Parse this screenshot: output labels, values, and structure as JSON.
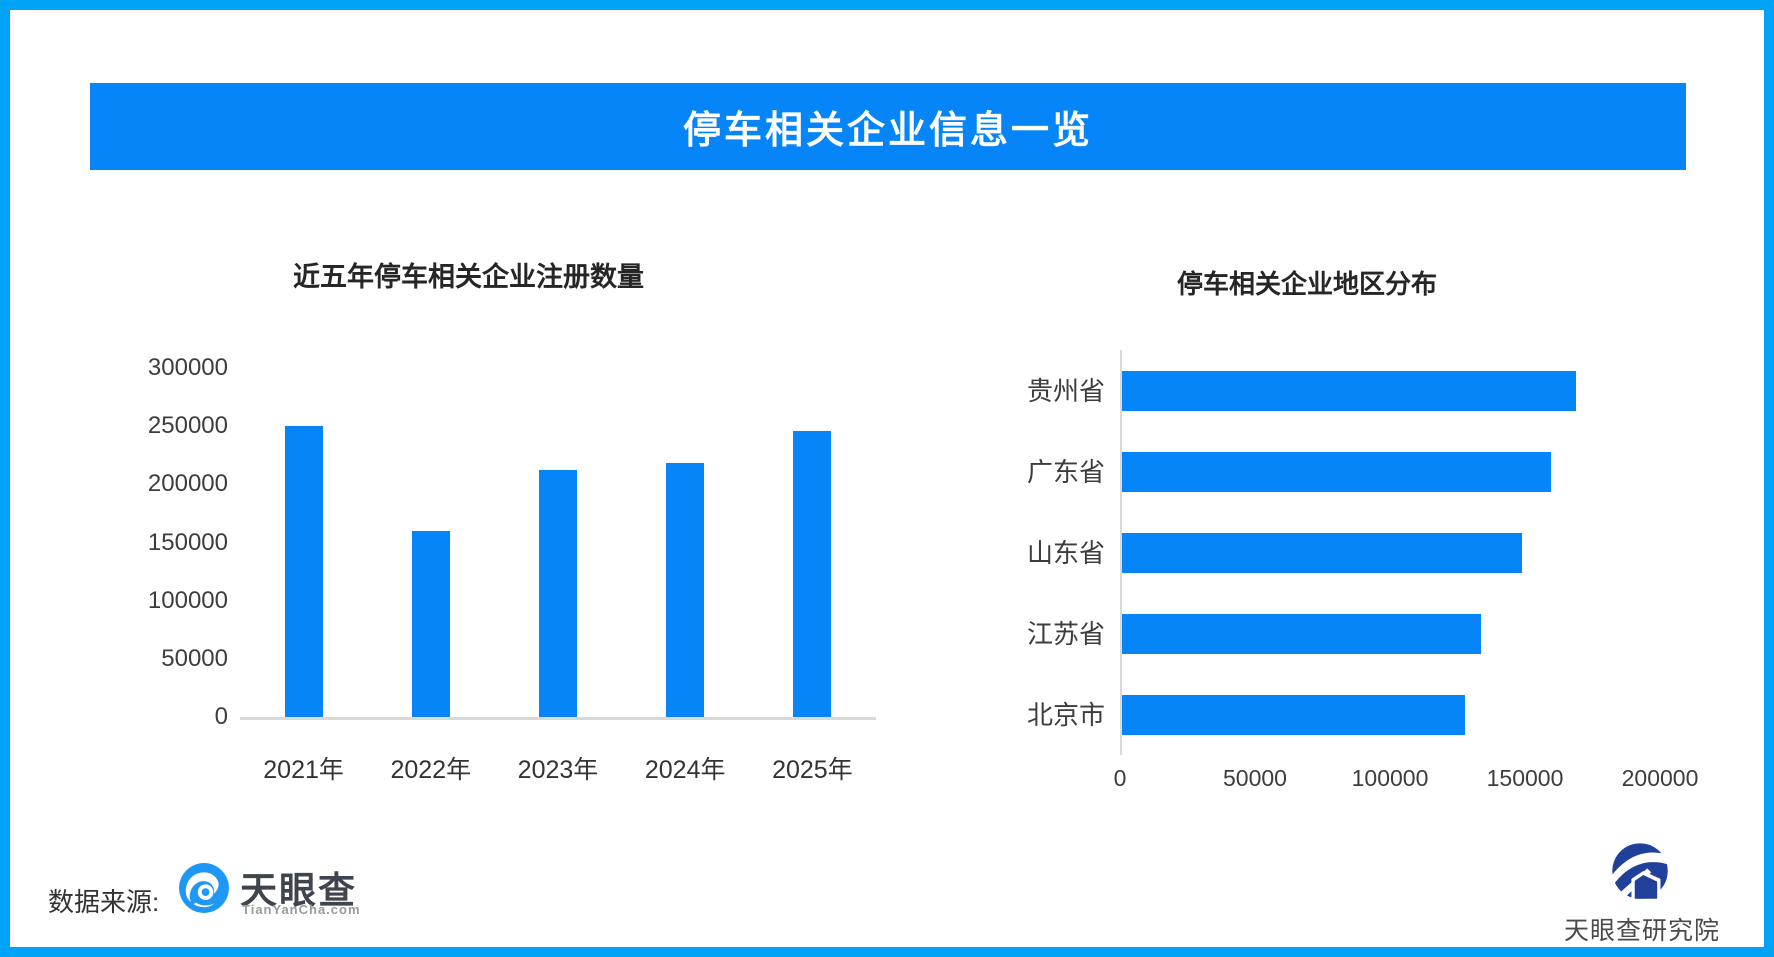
{
  "banner": {
    "title": "停车相关企业信息一览"
  },
  "colors": {
    "page_border_blue": "#00A3F7",
    "banner_blue": "#0585F7",
    "bar_blue": "#0585F7",
    "axis_gray": "#d9d9d9",
    "title_text": "#262626",
    "tianyancha_logo_blue": "#1F97F4",
    "institute_navy": "#21409A"
  },
  "chart_data": [
    {
      "id": "registrations",
      "type": "bar",
      "orientation": "vertical",
      "title": "近五年停车相关企业注册数量",
      "categories": [
        "2021年",
        "2022年",
        "2023年",
        "2024年",
        "2025年"
      ],
      "values": [
        250000,
        160000,
        212000,
        218000,
        246000
      ],
      "ylabel": "",
      "xlabel": "",
      "ylim": [
        0,
        300000
      ],
      "yticks": [
        0,
        50000,
        100000,
        150000,
        200000,
        250000,
        300000
      ],
      "grid": false,
      "legend": false,
      "bar_color": "#0585F7"
    },
    {
      "id": "regions",
      "type": "bar",
      "orientation": "horizontal",
      "title": "停车相关企业地区分布",
      "categories": [
        "贵州省",
        "广东省",
        "山东省",
        "江苏省",
        "北京市"
      ],
      "values": [
        168000,
        159000,
        148000,
        133000,
        127000
      ],
      "ylabel": "",
      "xlabel": "",
      "xlim": [
        0,
        200000
      ],
      "xticks": [
        0,
        50000,
        100000,
        150000,
        200000
      ],
      "grid": false,
      "legend": false,
      "bar_color": "#0585F7"
    }
  ],
  "footer": {
    "source_label": "数据来源:",
    "tianyancha": {
      "name": "天眼查",
      "domain": "TianYanCha.com"
    },
    "institute": {
      "name": "天眼查研究院"
    }
  }
}
